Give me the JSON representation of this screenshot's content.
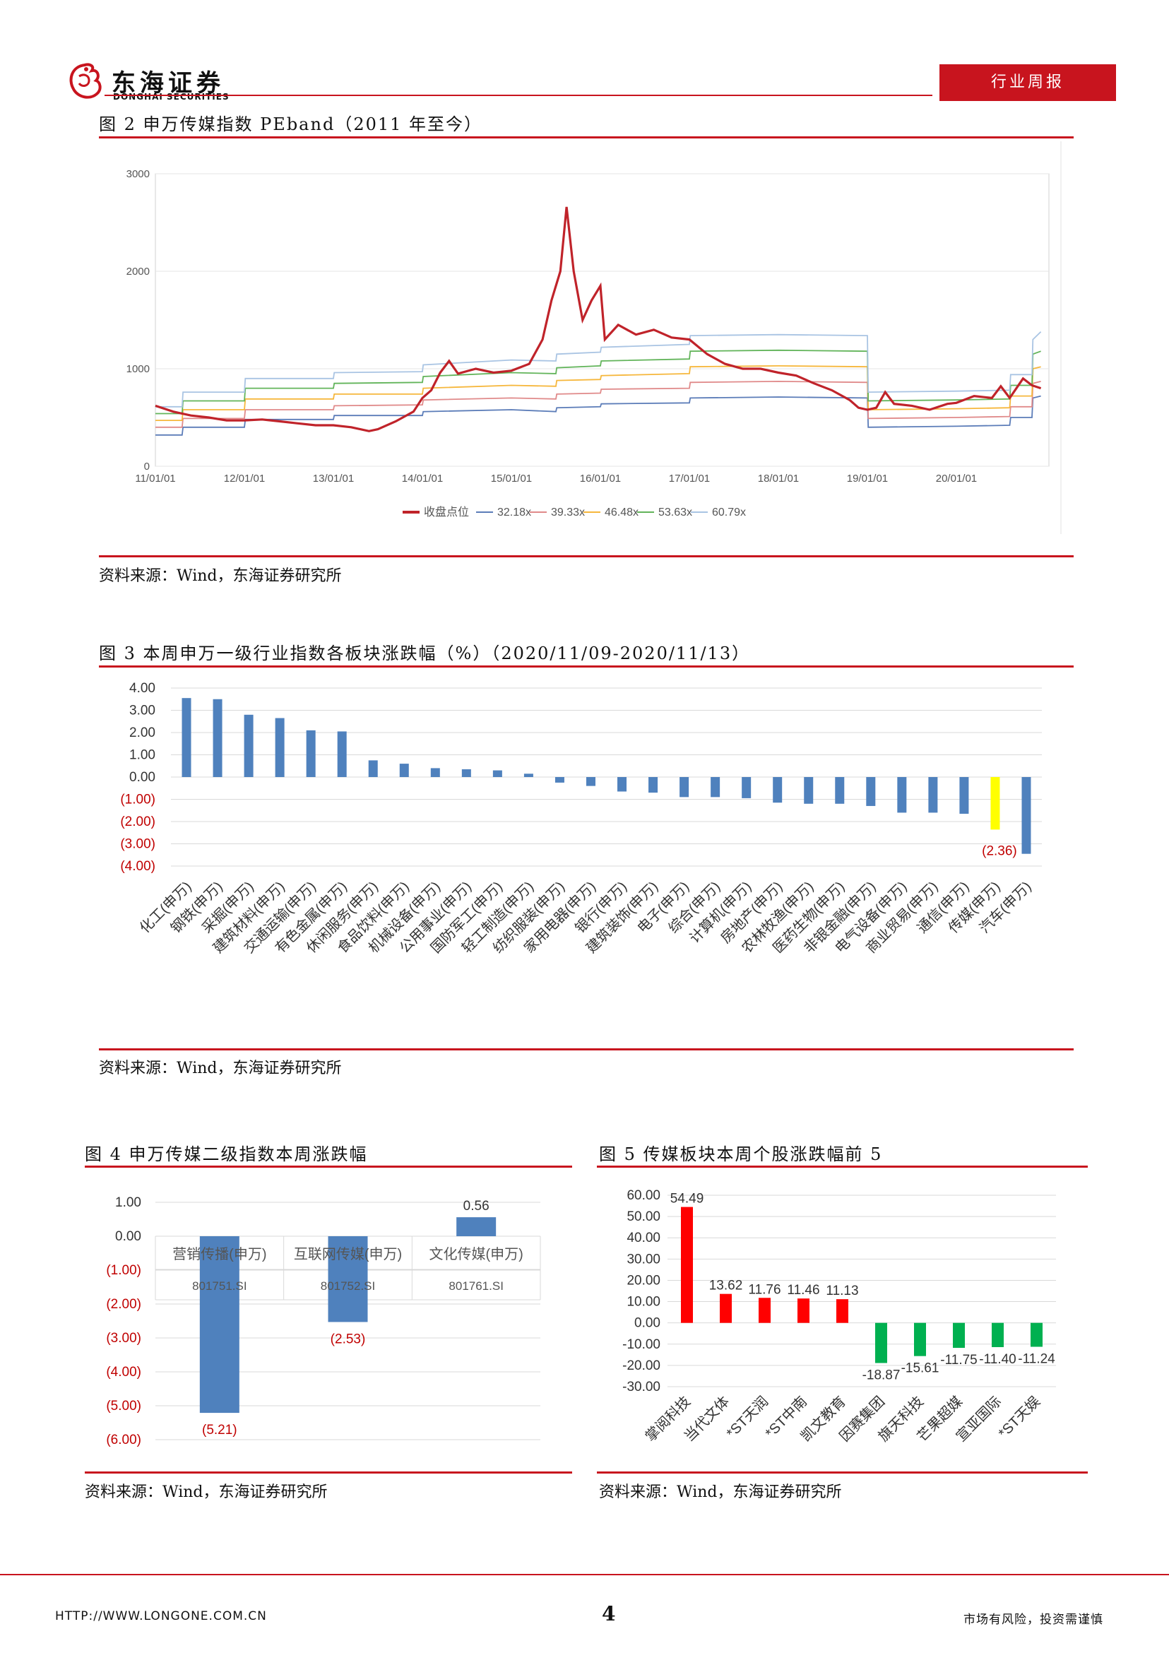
{
  "header": {
    "logo_cn": "东海证券",
    "logo_en": "DONGHAI SECURITIES",
    "tag": "行业周报"
  },
  "figures": {
    "fig2": {
      "title": "图 2 申万传媒指数 PEband（2011 年至今）",
      "source": "资料来源：Wind，东海证券研究所"
    },
    "fig3": {
      "title": "图 3 本周申万一级行业指数各板块涨跌幅（%）（2020/11/09-2020/11/13）",
      "source": "资料来源：Wind，东海证券研究所"
    },
    "fig4": {
      "title": "图 4 申万传媒二级指数本周涨跌幅",
      "source": "资料来源：Wind，东海证券研究所"
    },
    "fig5": {
      "title": "图 5 传媒板块本周个股涨跌幅前 5",
      "source": "资料来源：Wind，东海证券研究所"
    }
  },
  "footer": {
    "url": "HTTP://WWW.LONGONE.COM.CN",
    "page": "4",
    "disclaimer": "市场有风险，投资需谨慎"
  },
  "colors": {
    "accent": "#c8141e",
    "bar_blue": "#4f81bd",
    "highlight": "#ffff00",
    "up": "#ff0000",
    "down": "#00b050"
  },
  "chart_data": [
    {
      "id": "fig2",
      "type": "line",
      "x_ticks": [
        "11/01/01",
        "12/01/01",
        "13/01/01",
        "14/01/01",
        "15/01/01",
        "16/01/01",
        "17/01/01",
        "18/01/01",
        "19/01/01",
        "20/01/01"
      ],
      "y_ticks": [
        "0",
        "1000",
        "2000",
        "3000"
      ],
      "ylim": [
        0,
        3000
      ],
      "xlim": [
        2011.0,
        2021.0
      ],
      "series": [
        {
          "name": "收盘点位",
          "color": "#c0232a",
          "points": [
            [
              2011.0,
              620
            ],
            [
              2011.2,
              560
            ],
            [
              2011.4,
              520
            ],
            [
              2011.6,
              500
            ],
            [
              2011.8,
              470
            ],
            [
              2012.0,
              470
            ],
            [
              2012.2,
              480
            ],
            [
              2012.4,
              460
            ],
            [
              2012.6,
              440
            ],
            [
              2012.8,
              420
            ],
            [
              2013.0,
              420
            ],
            [
              2013.2,
              400
            ],
            [
              2013.4,
              360
            ],
            [
              2013.5,
              380
            ],
            [
              2013.7,
              460
            ],
            [
              2013.9,
              560
            ],
            [
              2014.0,
              700
            ],
            [
              2014.1,
              780
            ],
            [
              2014.2,
              960
            ],
            [
              2014.3,
              1080
            ],
            [
              2014.4,
              950
            ],
            [
              2014.6,
              1000
            ],
            [
              2014.8,
              960
            ],
            [
              2015.0,
              980
            ],
            [
              2015.2,
              1050
            ],
            [
              2015.35,
              1300
            ],
            [
              2015.45,
              1700
            ],
            [
              2015.55,
              2000
            ],
            [
              2015.62,
              2660
            ],
            [
              2015.7,
              2000
            ],
            [
              2015.8,
              1500
            ],
            [
              2015.9,
              1700
            ],
            [
              2016.0,
              1850
            ],
            [
              2016.05,
              1300
            ],
            [
              2016.2,
              1450
            ],
            [
              2016.4,
              1350
            ],
            [
              2016.6,
              1400
            ],
            [
              2016.8,
              1320
            ],
            [
              2017.0,
              1300
            ],
            [
              2017.2,
              1150
            ],
            [
              2017.4,
              1050
            ],
            [
              2017.6,
              1000
            ],
            [
              2017.8,
              1000
            ],
            [
              2018.0,
              960
            ],
            [
              2018.2,
              930
            ],
            [
              2018.4,
              850
            ],
            [
              2018.6,
              780
            ],
            [
              2018.8,
              680
            ],
            [
              2018.9,
              600
            ],
            [
              2019.0,
              580
            ],
            [
              2019.1,
              600
            ],
            [
              2019.2,
              760
            ],
            [
              2019.3,
              640
            ],
            [
              2019.5,
              620
            ],
            [
              2019.7,
              580
            ],
            [
              2019.9,
              640
            ],
            [
              2020.0,
              650
            ],
            [
              2020.2,
              720
            ],
            [
              2020.4,
              700
            ],
            [
              2020.5,
              820
            ],
            [
              2020.6,
              700
            ],
            [
              2020.75,
              900
            ],
            [
              2020.85,
              830
            ],
            [
              2020.95,
              800
            ]
          ]
        },
        {
          "name": "32.18x",
          "color": "#5b7cb8",
          "points": [
            [
              2011.0,
              320
            ],
            [
              2011.3,
              320
            ],
            [
              2011.31,
              400
            ],
            [
              2012.0,
              400
            ],
            [
              2012.01,
              480
            ],
            [
              2013.0,
              480
            ],
            [
              2013.01,
              520
            ],
            [
              2014.0,
              520
            ],
            [
              2014.01,
              560
            ],
            [
              2015.0,
              580
            ],
            [
              2015.5,
              560
            ],
            [
              2015.51,
              600
            ],
            [
              2016.0,
              610
            ],
            [
              2016.01,
              640
            ],
            [
              2017.0,
              650
            ],
            [
              2017.01,
              700
            ],
            [
              2018.0,
              710
            ],
            [
              2019.0,
              700
            ],
            [
              2019.01,
              400
            ],
            [
              2020.0,
              410
            ],
            [
              2020.6,
              420
            ],
            [
              2020.61,
              500
            ],
            [
              2020.85,
              500
            ],
            [
              2020.86,
              700
            ],
            [
              2020.95,
              720
            ]
          ]
        },
        {
          "name": "39.33x",
          "color": "#e08a8a",
          "points": [
            [
              2011.0,
              400
            ],
            [
              2011.3,
              400
            ],
            [
              2011.31,
              490
            ],
            [
              2012.0,
              490
            ],
            [
              2012.01,
              580
            ],
            [
              2013.0,
              580
            ],
            [
              2013.01,
              620
            ],
            [
              2014.0,
              630
            ],
            [
              2014.01,
              680
            ],
            [
              2015.0,
              700
            ],
            [
              2015.5,
              690
            ],
            [
              2015.51,
              740
            ],
            [
              2016.0,
              750
            ],
            [
              2016.01,
              790
            ],
            [
              2017.0,
              800
            ],
            [
              2017.01,
              860
            ],
            [
              2018.0,
              870
            ],
            [
              2019.0,
              860
            ],
            [
              2019.01,
              490
            ],
            [
              2020.0,
              500
            ],
            [
              2020.6,
              510
            ],
            [
              2020.61,
              610
            ],
            [
              2020.85,
              610
            ],
            [
              2020.86,
              850
            ],
            [
              2020.95,
              870
            ]
          ]
        },
        {
          "name": "46.48x",
          "color": "#f6b73c",
          "points": [
            [
              2011.0,
              470
            ],
            [
              2011.3,
              470
            ],
            [
              2011.31,
              580
            ],
            [
              2012.0,
              580
            ],
            [
              2012.01,
              690
            ],
            [
              2013.0,
              690
            ],
            [
              2013.01,
              740
            ],
            [
              2014.0,
              740
            ],
            [
              2014.01,
              800
            ],
            [
              2015.0,
              830
            ],
            [
              2015.5,
              820
            ],
            [
              2015.51,
              880
            ],
            [
              2016.0,
              890
            ],
            [
              2016.01,
              930
            ],
            [
              2017.0,
              950
            ],
            [
              2017.01,
              1020
            ],
            [
              2018.0,
              1030
            ],
            [
              2019.0,
              1020
            ],
            [
              2019.01,
              580
            ],
            [
              2020.0,
              590
            ],
            [
              2020.6,
              600
            ],
            [
              2020.61,
              720
            ],
            [
              2020.85,
              720
            ],
            [
              2020.86,
              1000
            ],
            [
              2020.95,
              1020
            ]
          ]
        },
        {
          "name": "53.63x",
          "color": "#62b45a",
          "points": [
            [
              2011.0,
              540
            ],
            [
              2011.3,
              540
            ],
            [
              2011.31,
              670
            ],
            [
              2012.0,
              670
            ],
            [
              2012.01,
              800
            ],
            [
              2013.0,
              800
            ],
            [
              2013.01,
              850
            ],
            [
              2014.0,
              860
            ],
            [
              2014.01,
              920
            ],
            [
              2015.0,
              960
            ],
            [
              2015.5,
              950
            ],
            [
              2015.51,
              1010
            ],
            [
              2016.0,
              1030
            ],
            [
              2016.01,
              1080
            ],
            [
              2017.0,
              1100
            ],
            [
              2017.01,
              1180
            ],
            [
              2018.0,
              1190
            ],
            [
              2019.0,
              1180
            ],
            [
              2019.01,
              670
            ],
            [
              2020.0,
              680
            ],
            [
              2020.6,
              690
            ],
            [
              2020.61,
              830
            ],
            [
              2020.85,
              830
            ],
            [
              2020.86,
              1150
            ],
            [
              2020.95,
              1180
            ]
          ]
        },
        {
          "name": "60.79x",
          "color": "#a9c4e3",
          "points": [
            [
              2011.0,
              610
            ],
            [
              2011.3,
              610
            ],
            [
              2011.31,
              760
            ],
            [
              2012.0,
              760
            ],
            [
              2012.01,
              900
            ],
            [
              2013.0,
              900
            ],
            [
              2013.01,
              960
            ],
            [
              2014.0,
              970
            ],
            [
              2014.01,
              1040
            ],
            [
              2015.0,
              1090
            ],
            [
              2015.5,
              1080
            ],
            [
              2015.51,
              1150
            ],
            [
              2016.0,
              1170
            ],
            [
              2016.01,
              1220
            ],
            [
              2017.0,
              1250
            ],
            [
              2017.01,
              1340
            ],
            [
              2018.0,
              1350
            ],
            [
              2019.0,
              1340
            ],
            [
              2019.01,
              760
            ],
            [
              2020.0,
              770
            ],
            [
              2020.6,
              780
            ],
            [
              2020.61,
              940
            ],
            [
              2020.85,
              940
            ],
            [
              2020.86,
              1300
            ],
            [
              2020.95,
              1380
            ]
          ]
        }
      ],
      "legend_position": "bottom"
    },
    {
      "id": "fig3",
      "type": "bar",
      "categories": [
        "化工(申万)",
        "钢铁(申万)",
        "采掘(申万)",
        "建筑材料(申万)",
        "交通运输(申万)",
        "有色金属(申万)",
        "休闲服务(申万)",
        "食品饮料(申万)",
        "机械设备(申万)",
        "公用事业(申万)",
        "国防军工(申万)",
        "轻工制造(申万)",
        "纺织服装(申万)",
        "家用电器(申万)",
        "银行(申万)",
        "建筑装饰(申万)",
        "电子(申万)",
        "综合(申万)",
        "计算机(申万)",
        "房地产(申万)",
        "农林牧渔(申万)",
        "医药生物(申万)",
        "非银金融(申万)",
        "电气设备(申万)",
        "商业贸易(申万)",
        "通信(申万)",
        "传媒(申万)",
        "汽车(申万)"
      ],
      "values": [
        3.55,
        3.5,
        2.8,
        2.65,
        2.1,
        2.05,
        0.75,
        0.6,
        0.4,
        0.35,
        0.3,
        0.15,
        -0.25,
        -0.4,
        -0.65,
        -0.7,
        -0.9,
        -0.9,
        -0.95,
        -1.15,
        -1.2,
        -1.2,
        -1.3,
        -1.6,
        -1.6,
        -1.65,
        -2.36,
        -3.45
      ],
      "highlight_index": 26,
      "annotation": "(2.36)",
      "y_ticks": [
        "4.00",
        "3.00",
        "2.00",
        "1.00",
        "0.00",
        "(1.00)",
        "(2.00)",
        "(3.00)",
        "(4.00)"
      ],
      "ylim": [
        -4,
        4
      ]
    },
    {
      "id": "fig4",
      "type": "bar",
      "categories": [
        "营销传播(申万)",
        "互联网传媒(申万)",
        "文化传媒(申万)"
      ],
      "codes": [
        "801751.SI",
        "801752.SI",
        "801761.SI"
      ],
      "values": [
        -5.21,
        -2.53,
        0.56
      ],
      "value_labels": [
        "(5.21)",
        "(2.53)",
        "0.56"
      ],
      "y_ticks": [
        "1.00",
        "0.00",
        "(1.00)",
        "(2.00)",
        "(3.00)",
        "(4.00)",
        "(5.00)",
        "(6.00)"
      ],
      "ylim": [
        -6,
        1
      ]
    },
    {
      "id": "fig5",
      "type": "bar",
      "categories": [
        "掌阅科技",
        "当代文体",
        "*ST天润",
        "*ST中南",
        "凯文教育",
        "因赛集团",
        "旗天科技",
        "芒果超媒",
        "宣亚国际",
        "*ST天娱"
      ],
      "values": [
        54.49,
        13.62,
        11.76,
        11.46,
        11.13,
        -18.87,
        -15.61,
        -11.75,
        -11.4,
        -11.24
      ],
      "value_labels": [
        "54.49",
        "13.62",
        "11.76",
        "11.46",
        "11.13",
        "-18.87",
        "-15.61",
        "-11.75",
        "-11.40",
        "-11.24"
      ],
      "y_ticks": [
        "60.00",
        "50.00",
        "40.00",
        "30.00",
        "20.00",
        "10.00",
        "0.00",
        "-10.00",
        "-20.00",
        "-30.00"
      ],
      "ylim": [
        -30,
        60
      ]
    }
  ]
}
